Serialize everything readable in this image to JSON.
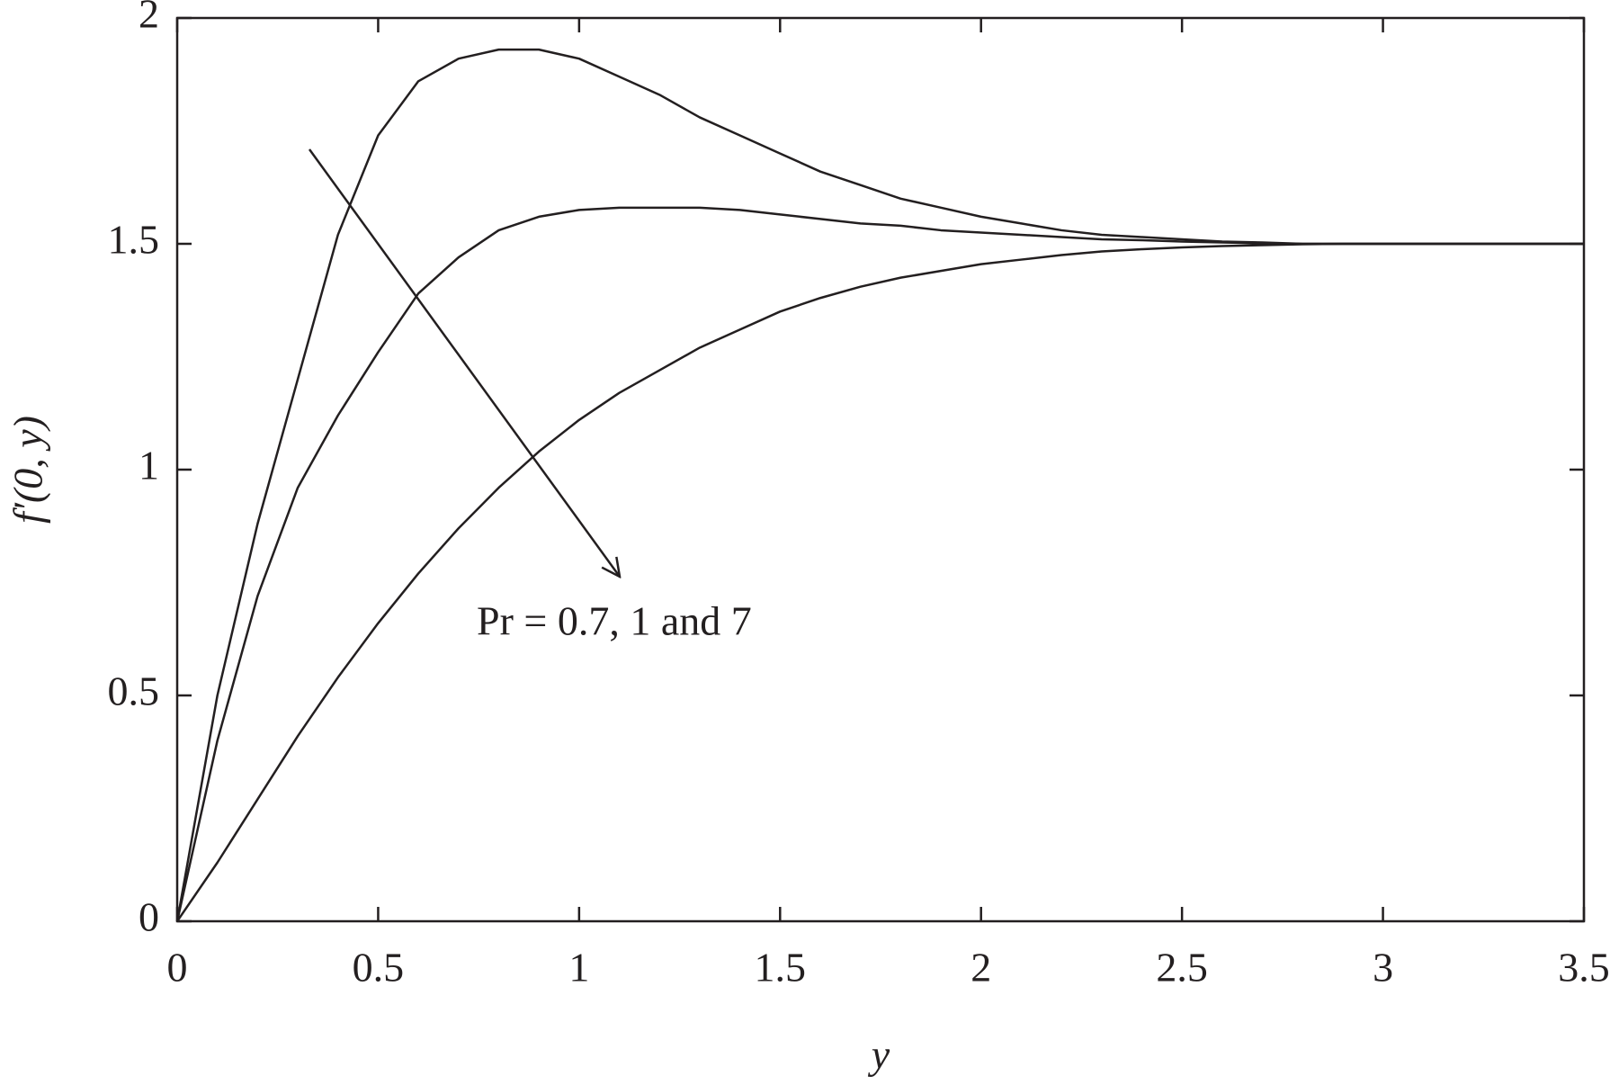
{
  "chart_data": {
    "type": "line",
    "xlabel": "y",
    "ylabel": "f′(0, y)",
    "annotation": "Pr = 0.7, 1 and 7",
    "x": [
      0,
      0.1,
      0.2,
      0.3,
      0.4,
      0.5,
      0.6,
      0.7,
      0.8,
      0.9,
      1.0,
      1.1,
      1.2,
      1.3,
      1.4,
      1.5,
      1.6,
      1.7,
      1.8,
      1.9,
      2.0,
      2.1,
      2.2,
      2.3,
      2.4,
      2.5,
      2.6,
      2.7,
      2.8,
      2.9,
      3.0,
      3.1,
      3.2,
      3.3,
      3.4,
      3.5
    ],
    "series": [
      {
        "color": "#231f20",
        "values": [
          0,
          0.5,
          0.88,
          1.2,
          1.52,
          1.74,
          1.86,
          1.91,
          1.93,
          1.93,
          1.91,
          1.87,
          1.83,
          1.78,
          1.74,
          1.7,
          1.66,
          1.63,
          1.6,
          1.58,
          1.56,
          1.545,
          1.53,
          1.52,
          1.515,
          1.51,
          1.505,
          1.503,
          1.5,
          1.5,
          1.5,
          1.5,
          1.5,
          1.5,
          1.5,
          1.5
        ]
      },
      {
        "color": "#231f20",
        "values": [
          0,
          0.4,
          0.72,
          0.96,
          1.12,
          1.26,
          1.39,
          1.47,
          1.53,
          1.56,
          1.575,
          1.58,
          1.58,
          1.58,
          1.575,
          1.565,
          1.555,
          1.545,
          1.54,
          1.53,
          1.525,
          1.52,
          1.515,
          1.51,
          1.508,
          1.505,
          1.503,
          1.501,
          1.5,
          1.5,
          1.5,
          1.5,
          1.5,
          1.5,
          1.5,
          1.5
        ]
      },
      {
        "color": "#231f20",
        "values": [
          0,
          0.13,
          0.27,
          0.41,
          0.54,
          0.66,
          0.77,
          0.87,
          0.96,
          1.04,
          1.11,
          1.17,
          1.22,
          1.27,
          1.31,
          1.35,
          1.38,
          1.405,
          1.425,
          1.44,
          1.455,
          1.465,
          1.475,
          1.483,
          1.488,
          1.492,
          1.495,
          1.497,
          1.499,
          1.5,
          1.5,
          1.5,
          1.5,
          1.5,
          1.5,
          1.5
        ]
      }
    ],
    "xlim": [
      0,
      3.5
    ],
    "xticks": [
      0,
      0.5,
      1,
      1.5,
      2,
      2.5,
      3,
      3.5
    ],
    "ylim": [
      0,
      2
    ],
    "yticks": [
      0,
      0.5,
      1,
      1.5,
      2
    ],
    "grid": false
  }
}
